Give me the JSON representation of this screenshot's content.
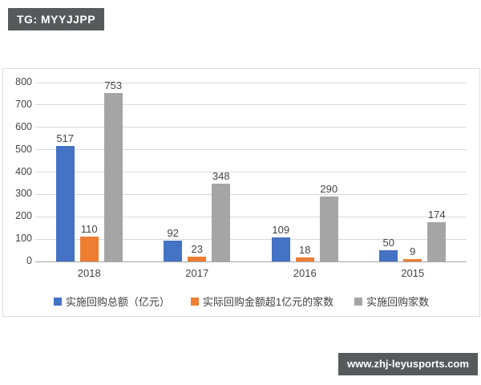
{
  "badges": {
    "top": "TG: MYYJJPP",
    "bottom": "www.zhj-leyusports.com"
  },
  "colors": {
    "badge_background": "#58595b",
    "badge_text": "#ffffff",
    "gridline": "#d9d9d9",
    "axis_line": "#a6a6a6",
    "label_text": "#444444",
    "chart_border": "#dedede"
  },
  "chart_data": {
    "type": "bar",
    "title": "",
    "xlabel": "",
    "ylabel": "",
    "categories": [
      "2018",
      "2017",
      "2016",
      "2015"
    ],
    "series": [
      {
        "name": "实施回购总额（亿元）",
        "color": "#4472C4",
        "values": [
          517,
          92,
          109,
          50
        ]
      },
      {
        "name": "实际回购金额超1亿元的家数",
        "color": "#ED7D31",
        "values": [
          110,
          23,
          18,
          9
        ]
      },
      {
        "name": "实施回购家数",
        "color": "#A5A5A5",
        "values": [
          753,
          348,
          290,
          174
        ]
      }
    ],
    "ylim": [
      0,
      800
    ],
    "yticks": [
      0,
      100,
      200,
      300,
      400,
      500,
      600,
      700,
      800
    ],
    "grid": true,
    "legend_position": "bottom"
  }
}
